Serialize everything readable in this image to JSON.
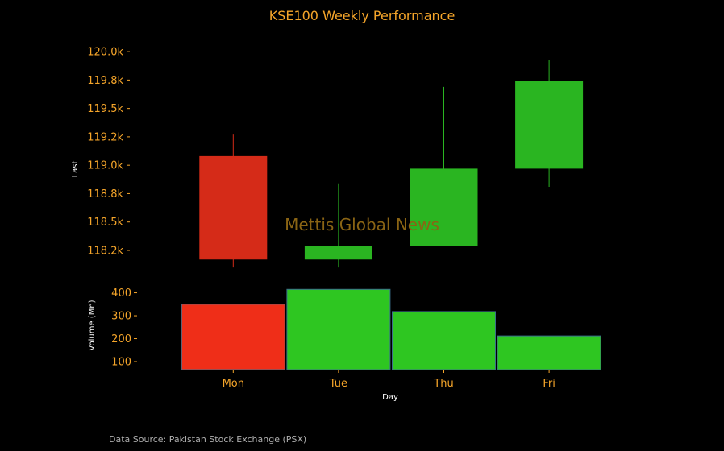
{
  "chart_data": {
    "type": "candlestick",
    "title": "KSE100 Weekly Performance",
    "categories": [
      "Mon",
      "Tue",
      "Thu",
      "Fri"
    ],
    "candles": [
      {
        "day": "Mon",
        "open": 119080,
        "close": 118170,
        "high": 119270,
        "low": 118100,
        "direction": "down"
      },
      {
        "day": "Tue",
        "open": 118170,
        "close": 118290,
        "high": 118840,
        "low": 118100,
        "direction": "up"
      },
      {
        "day": "Thu",
        "open": 118290,
        "close": 118970,
        "high": 119690,
        "low": 118290,
        "direction": "up"
      },
      {
        "day": "Fri",
        "open": 118970,
        "close": 119740,
        "high": 119930,
        "low": 118810,
        "direction": "up"
      }
    ],
    "volume": [
      {
        "day": "Mon",
        "value": 350,
        "direction": "down"
      },
      {
        "day": "Tue",
        "value": 415,
        "direction": "up"
      },
      {
        "day": "Thu",
        "value": 318,
        "direction": "up"
      },
      {
        "day": "Fri",
        "value": 212,
        "direction": "up"
      }
    ],
    "price_axis": {
      "label": "Last",
      "ylim": [
        118030,
        120100
      ],
      "ticks": [
        118250,
        118500,
        118750,
        119000,
        119250,
        119500,
        119750,
        120000
      ],
      "tick_labels": [
        "118.2k",
        "118.5k",
        "118.8k",
        "119.0k",
        "119.2k",
        "119.5k",
        "119.8k",
        "120.0k"
      ]
    },
    "volume_axis": {
      "label": "Volume (Mn)",
      "ylim": [
        65,
        430
      ],
      "ticks": [
        100,
        200,
        300,
        400
      ],
      "tick_labels": [
        "100",
        "200",
        "300",
        "400"
      ]
    },
    "xlabel": "Day",
    "watermark": "Mettis Global News",
    "source_note": "Data Source: Pakistan Stock Exchange (PSX)",
    "colors": {
      "up": "#2ab521",
      "up_volume": "#2ec621",
      "down": "#d52b18",
      "down_volume": "#ef2e18",
      "text": "#f5a52a",
      "background": "#000000",
      "watermark": "#8a6414"
    }
  }
}
